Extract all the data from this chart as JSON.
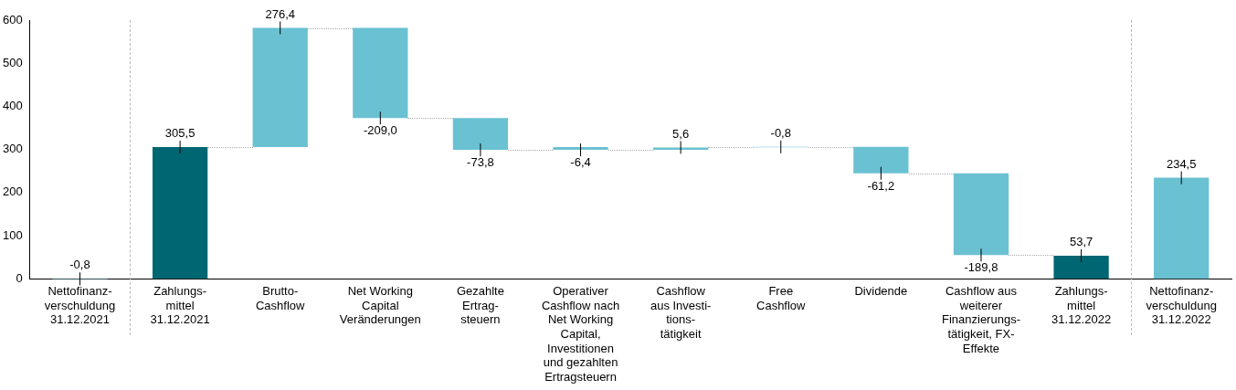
{
  "chart_data": {
    "type": "bar",
    "categories": [
      "Nettofinanz-\nverschuldung\n31.12.2021",
      "Zahlungs-\nmittel\n31.12.2021",
      "Brutto-\nCashflow",
      "Net Working\nCapital\nVeränderungen",
      "Gezahlte\nErtrag-\nsteuern",
      "Operativer\nCashflow nach\nNet Working\nCapital,\nInvestitionen\nund gezahlten\nErtragsteuern",
      "Cashflow\naus Investi-\ntions-\ntätigkeit",
      "Free\nCashflow",
      "Dividende",
      "Cashflow aus\nweiterer\nFinanzierungs-\ntätigkeit, FX-\nEffekte",
      "Zahlungs-\nmittel\n31.12.2022",
      "Nettofinanz-\nverschuldung\n31.12.2022"
    ],
    "values": [
      -0.8,
      305.5,
      276.4,
      -209.0,
      -73.8,
      -6.4,
      5.6,
      -0.8,
      -61.2,
      -189.8,
      53.7,
      234.5
    ],
    "base": [
      0,
      0,
      305.5,
      581.9,
      372.9,
      305.5,
      299.1,
      306,
      306,
      244.8,
      0,
      0
    ],
    "colors": [
      "#6ac1d2",
      "#006672",
      "#6ac1d2",
      "#6ac1d2",
      "#6ac1d2",
      "#6ac1d2",
      "#6ac1d2",
      "#6ac1d2",
      "#6ac1d2",
      "#6ac1d2",
      "#006672",
      "#6ac1d2"
    ],
    "value_labels": [
      "-0,8",
      "305,5",
      "276,4",
      "-209,0",
      "-73,8",
      "-6,4",
      "5,6",
      "-0,8",
      "-61,2",
      "-189,8",
      "53,7",
      "234,5"
    ],
    "ylim": [
      -1,
      600
    ],
    "yticks": [
      0,
      100,
      200,
      300,
      400,
      500,
      600
    ],
    "grid": false,
    "legend": false
  }
}
